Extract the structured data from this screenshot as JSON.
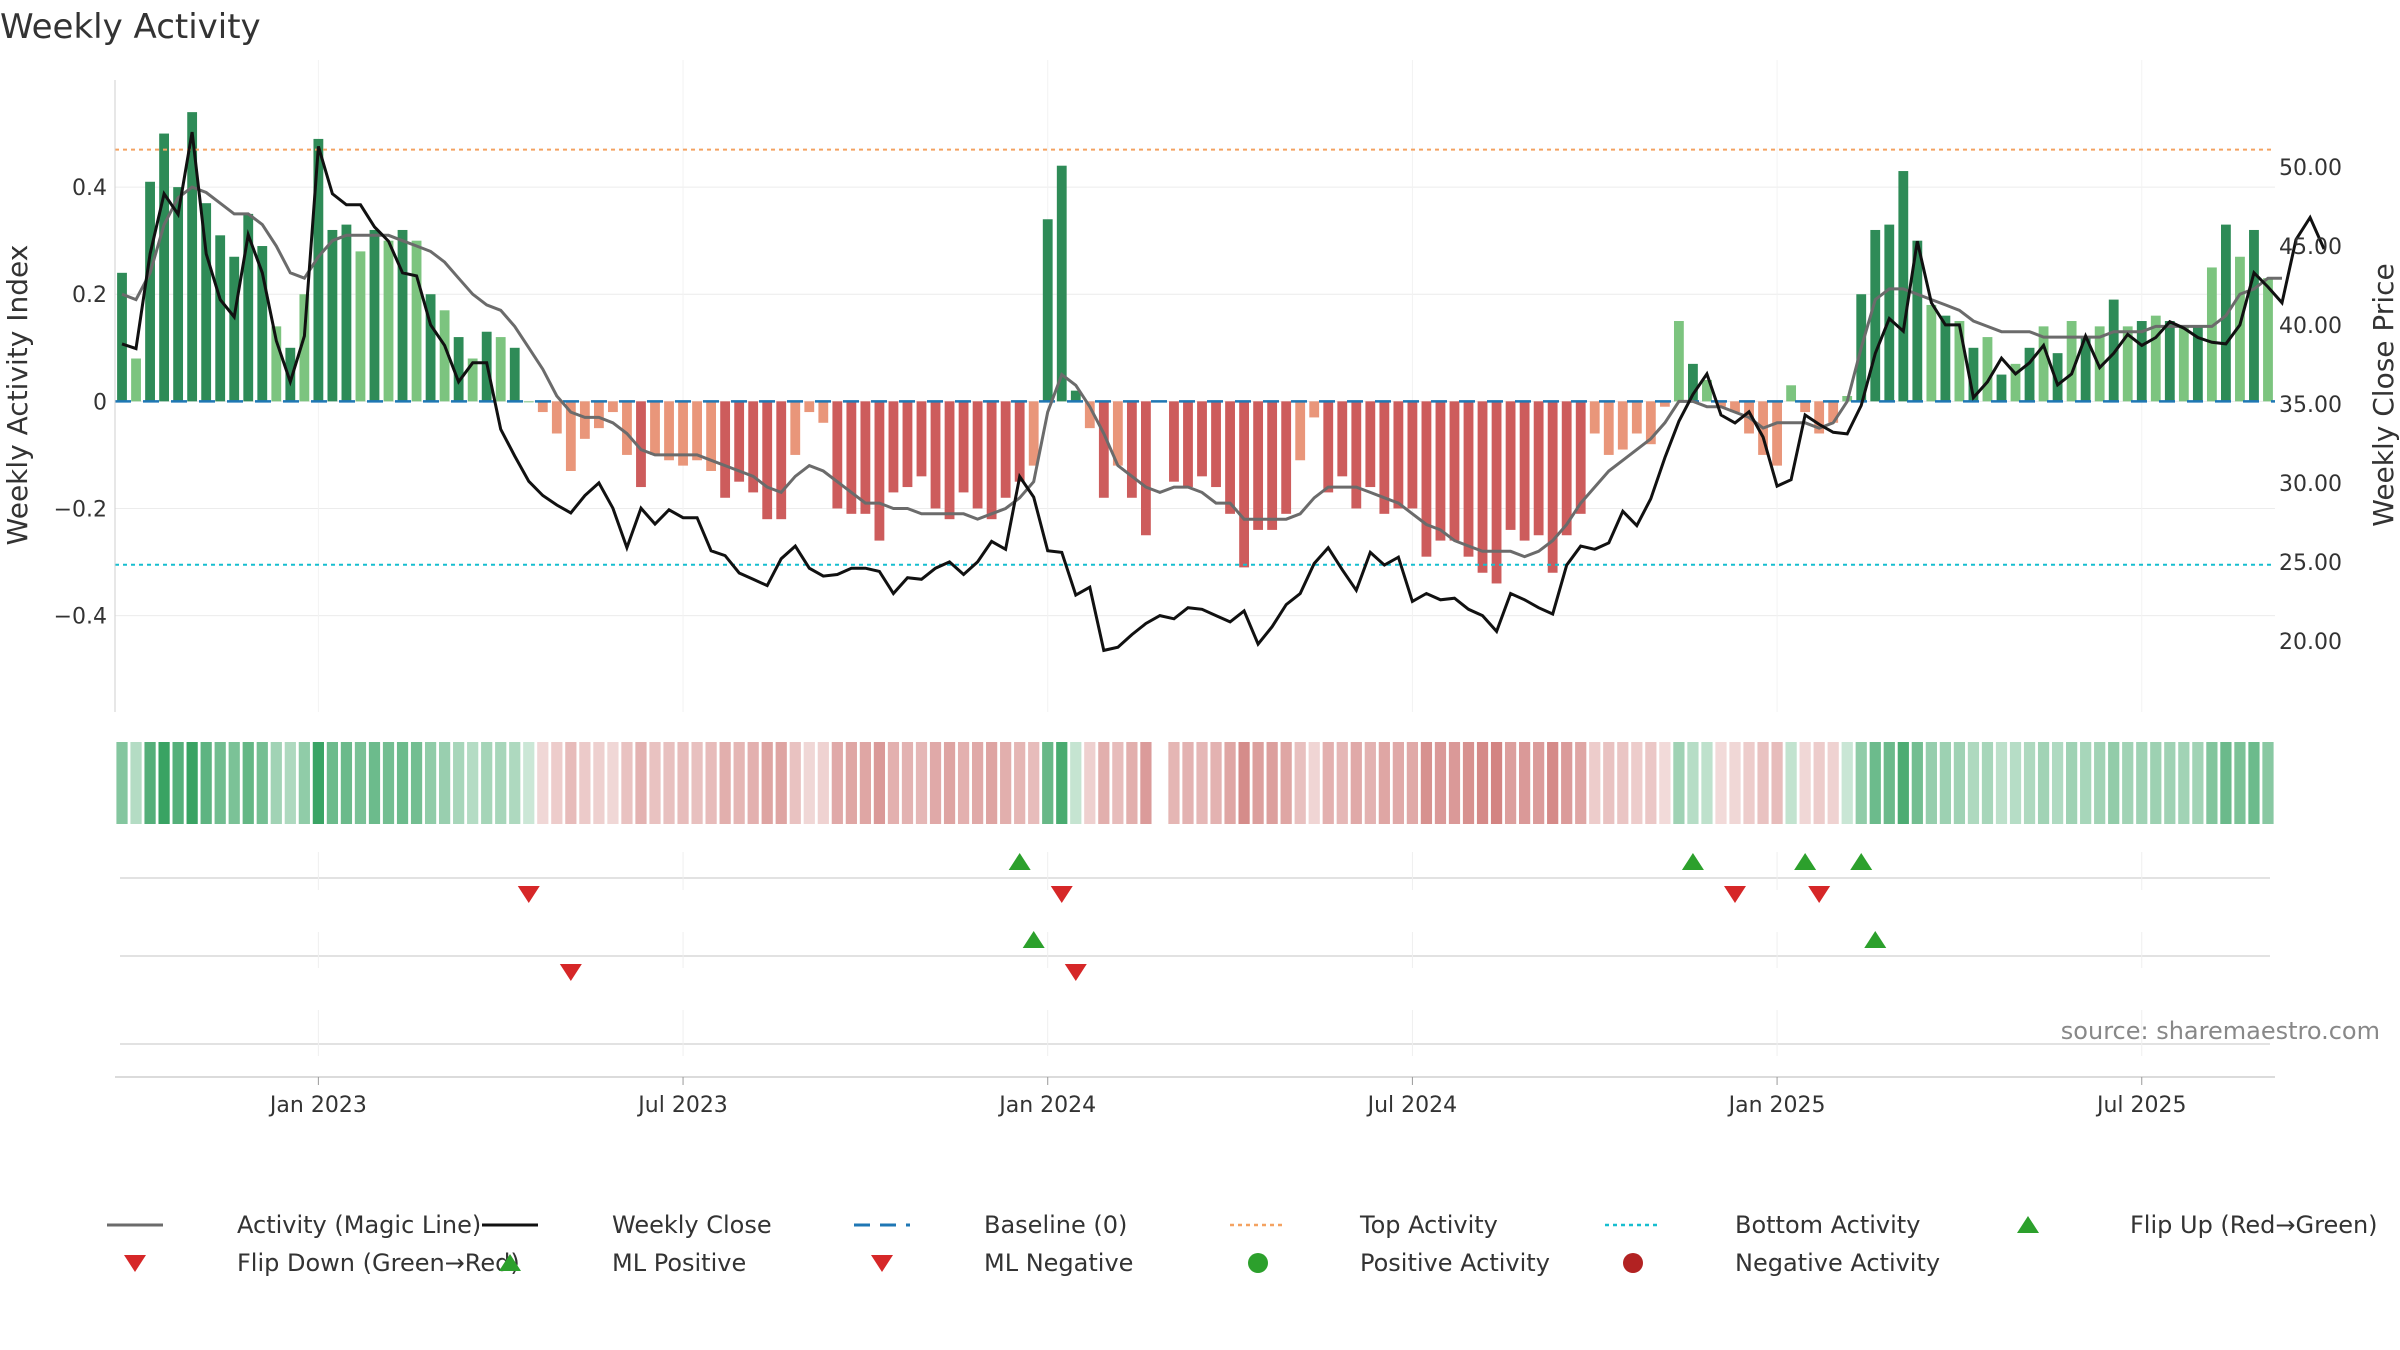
{
  "chart_data": {
    "type": "bar",
    "title": "Weekly Activity",
    "ylabel": "Weekly Activity Index",
    "ylabel_right": "Weekly Close Price",
    "ylim": [
      -0.58,
      0.6
    ],
    "ylim_right": [
      15.5,
      55.5
    ],
    "yticks": [
      {
        "v": 0.4,
        "label": "0.4"
      },
      {
        "v": 0.2,
        "label": "0.2"
      },
      {
        "v": 0,
        "label": "0"
      },
      {
        "v": -0.2,
        "label": "−0.2"
      },
      {
        "v": -0.4,
        "label": "−0.4"
      }
    ],
    "yticks_right": [
      {
        "v": 50,
        "label": "50.00"
      },
      {
        "v": 45,
        "label": "45.00"
      },
      {
        "v": 40,
        "label": "40.00"
      },
      {
        "v": 35,
        "label": "35.00"
      },
      {
        "v": 30,
        "label": "30.00"
      },
      {
        "v": 25,
        "label": "25.00"
      },
      {
        "v": 20,
        "label": "20.00"
      }
    ],
    "xticks": [
      {
        "w": 14,
        "label": "Jan 2023"
      },
      {
        "w": 40,
        "label": "Jul 2023"
      },
      {
        "w": 66,
        "label": "Jan 2024"
      },
      {
        "w": 92,
        "label": "Jul 2024"
      },
      {
        "w": 118,
        "label": "Jan 2025"
      },
      {
        "w": 144,
        "label": "Jul 2025"
      }
    ],
    "top_activity": 0.47,
    "bottom_activity": -0.305,
    "baseline": 0,
    "activity": [
      0.24,
      0.08,
      0.41,
      0.5,
      0.4,
      0.54,
      0.37,
      0.31,
      0.27,
      0.35,
      0.29,
      0.14,
      0.1,
      0.2,
      0.49,
      0.32,
      0.33,
      0.28,
      0.32,
      0.3,
      0.32,
      0.3,
      0.2,
      0.17,
      0.12,
      0.08,
      0.13,
      0.12,
      0.1,
      0.0,
      -0.02,
      -0.06,
      -0.13,
      -0.07,
      -0.05,
      -0.02,
      -0.1,
      -0.16,
      -0.1,
      -0.11,
      -0.12,
      -0.11,
      -0.13,
      -0.18,
      -0.15,
      -0.17,
      -0.22,
      -0.22,
      -0.1,
      -0.02,
      -0.04,
      -0.2,
      -0.21,
      -0.21,
      -0.26,
      -0.17,
      -0.16,
      -0.14,
      -0.2,
      -0.22,
      -0.17,
      -0.2,
      -0.22,
      -0.18,
      -0.15,
      -0.12,
      0.34,
      0.44,
      0.02,
      -0.05,
      -0.18,
      -0.12,
      -0.18,
      -0.25,
      null,
      -0.15,
      -0.16,
      -0.14,
      -0.16,
      -0.21,
      -0.31,
      -0.24,
      -0.24,
      -0.21,
      -0.11,
      -0.03,
      -0.17,
      -0.14,
      -0.2,
      -0.16,
      -0.21,
      -0.2,
      -0.2,
      -0.29,
      -0.26,
      -0.26,
      -0.29,
      -0.32,
      -0.34,
      -0.24,
      -0.26,
      -0.25,
      -0.32,
      -0.25,
      -0.21,
      -0.06,
      -0.1,
      -0.09,
      -0.06,
      -0.08,
      -0.01,
      0.15,
      0.07,
      0.04,
      -0.01,
      -0.02,
      -0.06,
      -0.1,
      -0.12,
      0.03,
      -0.02,
      -0.06,
      -0.04,
      0.01,
      0.2,
      0.32,
      0.33,
      0.43,
      0.3,
      0.18,
      0.16,
      0.15,
      0.1,
      0.12,
      0.05,
      0.07,
      0.1,
      0.14,
      0.09,
      0.15,
      0.12,
      0.14,
      0.19,
      0.14,
      0.15,
      0.16,
      0.15,
      0.14,
      0.14,
      0.25,
      0.33,
      0.27,
      0.32,
      0.23
    ],
    "magic_line": [
      0.2,
      0.19,
      0.24,
      0.33,
      0.38,
      0.4,
      0.39,
      0.37,
      0.35,
      0.35,
      0.33,
      0.29,
      0.24,
      0.23,
      0.27,
      0.3,
      0.31,
      0.31,
      0.31,
      0.31,
      0.3,
      0.29,
      0.28,
      0.26,
      0.23,
      0.2,
      0.18,
      0.17,
      0.14,
      0.1,
      0.06,
      0.01,
      -0.02,
      -0.03,
      -0.03,
      -0.04,
      -0.06,
      -0.09,
      -0.1,
      -0.1,
      -0.1,
      -0.1,
      -0.11,
      -0.12,
      -0.13,
      -0.14,
      -0.16,
      -0.17,
      -0.14,
      -0.12,
      -0.13,
      -0.15,
      -0.17,
      -0.19,
      -0.19,
      -0.2,
      -0.2,
      -0.21,
      -0.21,
      -0.21,
      -0.21,
      -0.22,
      -0.21,
      -0.2,
      -0.18,
      -0.15,
      -0.02,
      0.05,
      0.03,
      -0.01,
      -0.06,
      -0.12,
      -0.14,
      -0.16,
      -0.17,
      -0.16,
      -0.16,
      -0.17,
      -0.19,
      -0.19,
      -0.22,
      -0.22,
      -0.22,
      -0.22,
      -0.21,
      -0.18,
      -0.16,
      -0.16,
      -0.16,
      -0.17,
      -0.18,
      -0.19,
      -0.21,
      -0.23,
      -0.24,
      -0.26,
      -0.27,
      -0.28,
      -0.28,
      -0.28,
      -0.29,
      -0.28,
      -0.26,
      -0.23,
      -0.19,
      -0.16,
      -0.13,
      -0.11,
      -0.09,
      -0.07,
      -0.04,
      0.0,
      0.0,
      -0.01,
      -0.01,
      -0.02,
      -0.03,
      -0.05,
      -0.04,
      -0.04,
      -0.04,
      -0.05,
      -0.04,
      0.0,
      0.1,
      0.19,
      0.21,
      0.21,
      0.2,
      0.19,
      0.18,
      0.17,
      0.15,
      0.14,
      0.13,
      0.13,
      0.13,
      0.12,
      0.12,
      0.12,
      0.12,
      0.12,
      0.13,
      0.13,
      0.13,
      0.14,
      0.14,
      0.14,
      0.14,
      0.14,
      0.16,
      0.2,
      0.21,
      0.23,
      0.23
    ],
    "weekly_close": [
      38.8,
      38.5,
      44.5,
      48.3,
      47.0,
      52.2,
      44.5,
      41.6,
      40.5,
      45.7,
      43.3,
      39.0,
      36.4,
      39.3,
      51.3,
      48.3,
      47.6,
      47.6,
      46.2,
      45.3,
      43.3,
      43.1,
      40.0,
      38.7,
      36.4,
      37.6,
      37.6,
      33.4,
      31.7,
      30.1,
      29.2,
      28.6,
      28.1,
      29.2,
      30.0,
      28.4,
      25.9,
      28.4,
      27.4,
      28.3,
      27.8,
      27.8,
      25.7,
      25.4,
      24.3,
      23.9,
      23.5,
      25.2,
      26.0,
      24.6,
      24.1,
      24.2,
      24.6,
      24.6,
      24.4,
      23.0,
      24.0,
      23.9,
      24.6,
      25.0,
      24.2,
      25.0,
      26.3,
      25.8,
      30.4,
      29.1,
      25.7,
      25.6,
      22.9,
      23.4,
      19.4,
      19.6,
      20.4,
      21.1,
      21.6,
      21.4,
      22.1,
      22.0,
      21.6,
      21.2,
      21.9,
      19.8,
      20.9,
      22.3,
      23.0,
      24.9,
      25.9,
      24.5,
      23.2,
      25.6,
      24.8,
      25.3,
      22.5,
      23.0,
      22.6,
      22.7,
      22.0,
      21.6,
      20.6,
      23.0,
      22.6,
      22.1,
      21.7,
      24.8,
      26.0,
      25.8,
      26.2,
      28.2,
      27.3,
      29.0,
      31.6,
      33.9,
      35.6,
      36.9,
      34.3,
      33.8,
      34.5,
      32.9,
      29.8,
      30.2,
      34.3,
      33.7,
      33.2,
      33.1,
      34.9,
      38.2,
      40.4,
      39.6,
      45.3,
      41.4,
      40.0,
      40.0,
      35.4,
      36.4,
      37.9,
      36.9,
      37.6,
      38.7,
      36.2,
      36.9,
      39.3,
      37.3,
      38.2,
      39.4,
      38.7,
      39.2,
      40.2,
      39.8,
      39.2,
      38.9,
      38.8,
      40.0,
      43.3,
      42.4,
      41.4,
      45.4,
      46.8,
      44.8
    ],
    "flip_up": [
      64,
      112,
      120,
      124
    ],
    "flip_down": [
      29,
      67,
      115,
      121
    ],
    "ml_positive": [
      65,
      125
    ],
    "ml_negative": [
      32,
      68
    ],
    "source": "source: sharemaestro.com",
    "legend": [
      {
        "label": "Activity (Magic Line)",
        "kind": "line",
        "color": "#6b6b6b"
      },
      {
        "label": "Weekly Close",
        "kind": "line",
        "color": "#111111"
      },
      {
        "label": "Baseline (0)",
        "kind": "dash",
        "color": "#1f77b4"
      },
      {
        "label": "Top Activity",
        "kind": "dot-orange",
        "color": "#f4a261"
      },
      {
        "label": "Bottom Activity",
        "kind": "dot-cyan",
        "color": "#17becf"
      },
      {
        "label": "Flip Up (Red→Green)",
        "kind": "tri-up",
        "color": "#2ca02c"
      },
      {
        "label": "Flip Down (Green→Red)",
        "kind": "tri-down",
        "color": "#d62728"
      },
      {
        "label": "ML Positive",
        "kind": "tri-up",
        "color": "#2ca02c"
      },
      {
        "label": "ML Negative",
        "kind": "tri-down",
        "color": "#d62728"
      },
      {
        "label": "Positive Activity",
        "kind": "circle",
        "color": "#2ca02c"
      },
      {
        "label": "Negative Activity",
        "kind": "circle",
        "color": "#b22222"
      }
    ]
  }
}
